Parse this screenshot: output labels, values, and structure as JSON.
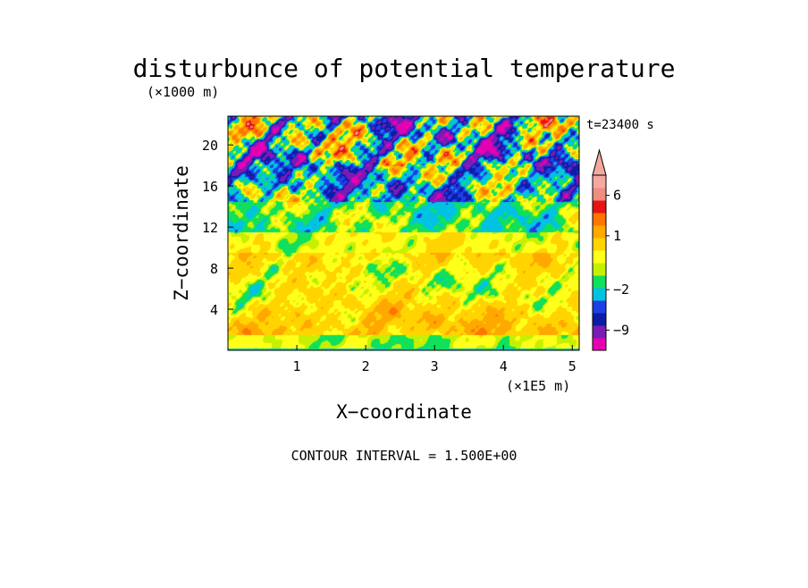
{
  "chart_data": {
    "type": "heatmap",
    "title": "disturbunce of potential temperature",
    "time_label": "t=23400 s",
    "xlabel": "X−coordinate",
    "ylabel": "Z−coordinate",
    "x_unit": "(×1E5 m)",
    "y_unit": "(×1000 m)",
    "x_ticks": [
      1,
      2,
      3,
      4,
      5
    ],
    "y_ticks": [
      4,
      8,
      12,
      16,
      20
    ],
    "xlim": [
      0,
      5.1
    ],
    "ylim": [
      0,
      22.8
    ],
    "contour_interval_text": "CONTOUR INTERVAL = 1.500E+00",
    "colorbar": {
      "labels": [
        {
          "text": "6",
          "value": 6
        },
        {
          "text": "1",
          "value": 1
        },
        {
          "text": "−2",
          "value": -2
        },
        {
          "text": "−9",
          "value": -9
        }
      ],
      "colors_bottom_to_top": [
        "#e600b4",
        "#7a1bb5",
        "#0c1ca6",
        "#1f3fe6",
        "#00c3e1",
        "#10e05c",
        "#c7f000",
        "#ffff1a",
        "#ffd400",
        "#ffa800",
        "#ff7500",
        "#e81414",
        "#f08c80",
        "#f4a8a0"
      ]
    },
    "colormap": [
      {
        "value": -10.5,
        "color": "#e600b4"
      },
      {
        "value": -9,
        "color": "#7a1bb5"
      },
      {
        "value": -6,
        "color": "#0c1ca6"
      },
      {
        "value": -4.5,
        "color": "#1f3fe6"
      },
      {
        "value": -3,
        "color": "#00c3e1"
      },
      {
        "value": -1.5,
        "color": "#10e05c"
      },
      {
        "value": -0.5,
        "color": "#c7f000"
      },
      {
        "value": 0,
        "color": "#ffff1a"
      },
      {
        "value": 1,
        "color": "#ffd400"
      },
      {
        "value": 2.5,
        "color": "#ffa800"
      },
      {
        "value": 4,
        "color": "#ff7500"
      },
      {
        "value": 6,
        "color": "#e81414"
      },
      {
        "value": 8,
        "color": "#f08c80"
      }
    ],
    "field_description_levels": [
      {
        "z_range": [
          0,
          1
        ],
        "typical_value": -0.3
      },
      {
        "z_range": [
          1,
          11
        ],
        "typical_value": 1.2
      },
      {
        "z_range": [
          11,
          14
        ],
        "typical_value": -1.5
      },
      {
        "z_range": [
          14,
          22.8
        ],
        "typical_value": -3
      }
    ]
  }
}
